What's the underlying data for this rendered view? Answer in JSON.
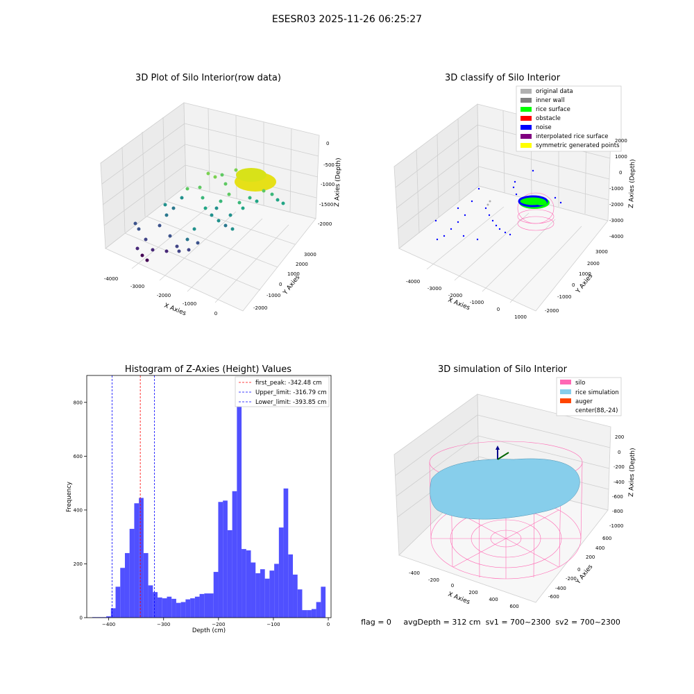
{
  "figure_title": "ESESR03 2025-11-26 06:25:27",
  "footer_text": "flag = 0     avgDepth = 312 cm  sv1 = 700~2300  sv2 = 700~2300",
  "colors": {
    "hist_bar": "#5050ff",
    "first_peak_line": "#ff0000",
    "limit_line": "#0000ff",
    "silo": "#ff69b4",
    "rice_simulation": "#87ceeb",
    "auger": "#ff4500",
    "rice_surface": "#00ff00",
    "noise": "#0000ff",
    "original_data": "#b0b0b0",
    "inner_wall": "#808080",
    "obstacle": "#ff0000",
    "interpolated_rice_surface": "#800080",
    "symmetric_generated_points": "#ffff00"
  },
  "chart_data": [
    {
      "type": "scatter",
      "projection": "3d",
      "title": "3D Plot of Silo Interior(row data)",
      "xlabel": "X Axies",
      "ylabel": "Y Axies",
      "zlabel": "Z Axies (Depth)",
      "x_ticks": [
        "-4000",
        "-3000",
        "-2000",
        "-1000",
        "0"
      ],
      "y_ticks": [
        "-2000",
        "-1000",
        "0",
        "1000",
        "2000",
        "3000"
      ],
      "z_ticks": [
        "0",
        "-500",
        "-1000",
        "-1500",
        "-2000"
      ],
      "colormap": "viridis"
    },
    {
      "type": "scatter",
      "projection": "3d",
      "title": "3D classify of Silo Interior",
      "xlabel": "X Axies",
      "ylabel": "Y Axies",
      "zlabel": "Z Axies (Depth)",
      "x_ticks": [
        "-4000",
        "-3000",
        "-2000",
        "-1000",
        "0",
        "1000"
      ],
      "y_ticks": [
        "-2000",
        "-1000",
        "0",
        "1000",
        "2000",
        "3000"
      ],
      "z_ticks": [
        "2000",
        "1000",
        "0",
        "-1000",
        "-2000",
        "-3000",
        "-4000"
      ],
      "legend": [
        "original data",
        "inner wall",
        "rice surface",
        "obstacle",
        "noise",
        "interpolated rice surface",
        "symmetric generated points"
      ],
      "legend_position": "top-right"
    },
    {
      "type": "bar",
      "title": "Histogram of Z-Axies (Height) Values",
      "xlabel": "Depth (cm)",
      "ylabel": "Frequency",
      "xlim": [
        -440,
        5
      ],
      "ylim": [
        0,
        900
      ],
      "x_ticks": [
        -400,
        -300,
        -200,
        -100,
        0
      ],
      "y_ticks": [
        0,
        200,
        400,
        600,
        800
      ],
      "bin_width": 8.5,
      "bins": [
        {
          "x": -430,
          "value": 2
        },
        {
          "x": -421.5,
          "value": 2
        },
        {
          "x": -413,
          "value": 2
        },
        {
          "x": -404.5,
          "value": 5
        },
        {
          "x": -396,
          "value": 35
        },
        {
          "x": -387.5,
          "value": 115
        },
        {
          "x": -379,
          "value": 185
        },
        {
          "x": -370.5,
          "value": 240
        },
        {
          "x": -362,
          "value": 330
        },
        {
          "x": -353.5,
          "value": 425
        },
        {
          "x": -345,
          "value": 445
        },
        {
          "x": -336.5,
          "value": 240
        },
        {
          "x": -328,
          "value": 120
        },
        {
          "x": -319.5,
          "value": 95
        },
        {
          "x": -311,
          "value": 75
        },
        {
          "x": -302.5,
          "value": 72
        },
        {
          "x": -294,
          "value": 78
        },
        {
          "x": -285.5,
          "value": 70
        },
        {
          "x": -277,
          "value": 55
        },
        {
          "x": -268.5,
          "value": 58
        },
        {
          "x": -260,
          "value": 68
        },
        {
          "x": -251.5,
          "value": 72
        },
        {
          "x": -243,
          "value": 78
        },
        {
          "x": -234.5,
          "value": 88
        },
        {
          "x": -226,
          "value": 90
        },
        {
          "x": -217.5,
          "value": 90
        },
        {
          "x": -209,
          "value": 170
        },
        {
          "x": -200.5,
          "value": 430
        },
        {
          "x": -192,
          "value": 435
        },
        {
          "x": -183.5,
          "value": 325
        },
        {
          "x": -175,
          "value": 470
        },
        {
          "x": -166.5,
          "value": 855
        },
        {
          "x": -158,
          "value": 255
        },
        {
          "x": -149.5,
          "value": 250
        },
        {
          "x": -141,
          "value": 205
        },
        {
          "x": -132.5,
          "value": 165
        },
        {
          "x": -124,
          "value": 180
        },
        {
          "x": -115.5,
          "value": 145
        },
        {
          "x": -107,
          "value": 175
        },
        {
          "x": -98.5,
          "value": 200
        },
        {
          "x": -90,
          "value": 335
        },
        {
          "x": -81.5,
          "value": 480
        },
        {
          "x": -73,
          "value": 235
        },
        {
          "x": -64.5,
          "value": 160
        },
        {
          "x": -56,
          "value": 105
        },
        {
          "x": -47.5,
          "value": 28
        },
        {
          "x": -39,
          "value": 28
        },
        {
          "x": -30.5,
          "value": 32
        },
        {
          "x": -22,
          "value": 58
        },
        {
          "x": -13.5,
          "value": 115
        }
      ],
      "vlines": [
        {
          "label": "first_peak: -342.48 cm",
          "x": -342.48,
          "color": "#ff0000"
        },
        {
          "label": "Upper_limit: -316.79 cm",
          "x": -316.79,
          "color": "#0000ff"
        },
        {
          "label": "Lower_limit: -393.85 cm",
          "x": -393.85,
          "color": "#0000ff"
        }
      ],
      "legend_position": "top-right"
    },
    {
      "type": "surface",
      "projection": "3d",
      "title": "3D simulation of Silo Interior",
      "xlabel": "X Axies",
      "ylabel": "Y Axies",
      "zlabel": "Z Axies (Depth)",
      "x_ticks": [
        "-400",
        "-200",
        "0",
        "200",
        "400",
        "600"
      ],
      "y_ticks": [
        "-600",
        "-400",
        "-200",
        "0",
        "200",
        "400",
        "600"
      ],
      "z_ticks": [
        "200",
        "0",
        "-200",
        "-400",
        "-600",
        "-800",
        "-1000"
      ],
      "legend": [
        "silo",
        "rice simulation",
        "auger",
        "center(88,-24)"
      ],
      "legend_position": "top-right"
    }
  ]
}
